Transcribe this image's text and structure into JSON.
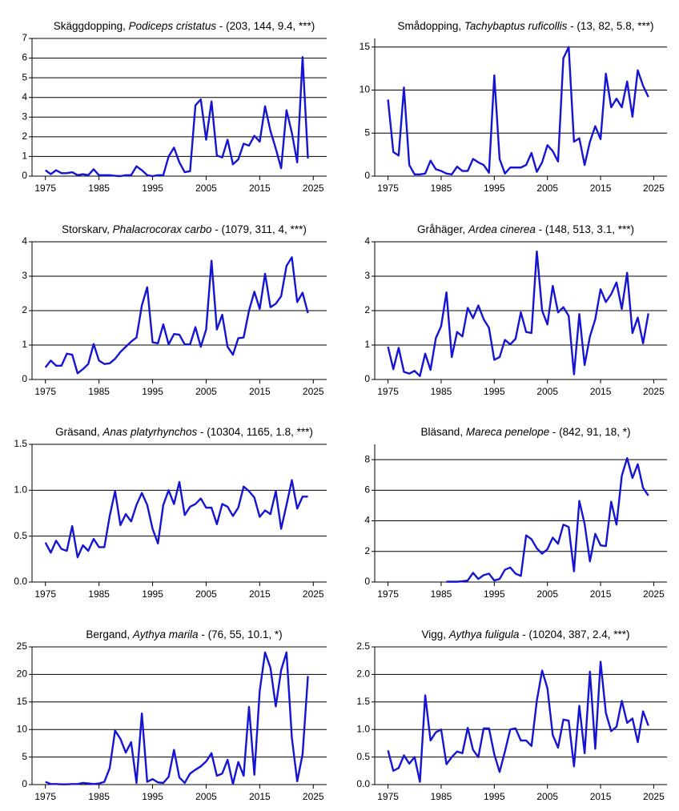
{
  "chart_data": [
    {
      "type": "line",
      "title": [
        "Skäggdopping, ",
        "Podiceps cristatus",
        " - (203, 144, 9.4, ***)"
      ],
      "color": "#1414d2",
      "x": [
        1975,
        1976,
        1977,
        1978,
        1979,
        1980,
        1981,
        1982,
        1983,
        1984,
        1985,
        1986,
        1987,
        1988,
        1989,
        1990,
        1991,
        1992,
        1993,
        1994,
        1995,
        1996,
        1997,
        1998,
        1999,
        2000,
        2001,
        2002,
        2003,
        2004,
        2005,
        2006,
        2007,
        2008,
        2009,
        2010,
        2011,
        2012,
        2013,
        2014,
        2015,
        2016,
        2017,
        2018,
        2019,
        2020,
        2021,
        2022,
        2023,
        2024
      ],
      "values": [
        0.3,
        0.1,
        0.3,
        0.15,
        0.15,
        0.2,
        0.05,
        0.1,
        0.05,
        0.35,
        0.05,
        0.05,
        0.05,
        0.02,
        0,
        0.05,
        0.05,
        0.5,
        0.3,
        0.05,
        0,
        0.05,
        0.05,
        1.0,
        1.45,
        0.7,
        0.2,
        0.25,
        3.6,
        3.9,
        1.85,
        3.8,
        1.05,
        0.95,
        1.85,
        0.6,
        0.85,
        1.65,
        1.55,
        2.05,
        1.75,
        3.55,
        2.3,
        1.4,
        0.4,
        3.35,
        2.2,
        0.7,
        6.05,
        0.9
      ],
      "xlim": [
        1972.5,
        2027.5
      ],
      "xticks": [
        1975,
        1985,
        1995,
        2005,
        2015,
        2025
      ],
      "ylim": [
        0,
        7
      ],
      "yticks": [
        0,
        1,
        2,
        3,
        4,
        5,
        6,
        7
      ],
      "grid": true
    },
    {
      "type": "line",
      "title": [
        "Smådopping, ",
        "Tachybaptus ruficollis",
        " - (13, 82, 5.8, ***)"
      ],
      "color": "#1414d2",
      "x": [
        1975,
        1976,
        1977,
        1978,
        1979,
        1980,
        1981,
        1982,
        1983,
        1984,
        1985,
        1986,
        1987,
        1988,
        1989,
        1990,
        1991,
        1992,
        1993,
        1994,
        1995,
        1996,
        1997,
        1998,
        1999,
        2000,
        2001,
        2002,
        2003,
        2004,
        2005,
        2006,
        2007,
        2008,
        2009,
        2010,
        2011,
        2012,
        2013,
        2014,
        2015,
        2016,
        2017,
        2018,
        2019,
        2020,
        2021,
        2022,
        2023,
        2024
      ],
      "values": [
        8.9,
        2.8,
        2.4,
        10.3,
        1.3,
        0.2,
        0.2,
        0.3,
        1.8,
        0.8,
        0.6,
        0.3,
        0.2,
        1.1,
        0.6,
        0.6,
        2.0,
        1.6,
        1.3,
        0.4,
        11.7,
        2.0,
        0.3,
        1.0,
        1.0,
        1.0,
        1.3,
        2.7,
        0.5,
        1.6,
        3.6,
        2.9,
        1.7,
        13.7,
        15.0,
        4.0,
        4.4,
        1.3,
        4.0,
        5.8,
        4.3,
        11.9,
        8.0,
        9.0,
        8.0,
        11.0,
        6.9,
        12.3,
        10.5,
        9.2
      ],
      "xlim": [
        1972.5,
        2027.5
      ],
      "xticks": [
        1975,
        1985,
        1995,
        2005,
        2015,
        2025
      ],
      "ylim": [
        0,
        16
      ],
      "yticks": [
        0,
        5,
        10,
        15
      ],
      "grid": true
    },
    {
      "type": "line",
      "title": [
        "Storskarv, ",
        "Phalacrocorax carbo",
        " - (1079, 311, 4, ***)"
      ],
      "color": "#1414d2",
      "x": [
        1975,
        1976,
        1977,
        1978,
        1979,
        1980,
        1981,
        1982,
        1983,
        1984,
        1985,
        1986,
        1987,
        1988,
        1989,
        1990,
        1991,
        1992,
        1993,
        1994,
        1995,
        1996,
        1997,
        1998,
        1999,
        2000,
        2001,
        2002,
        2003,
        2004,
        2005,
        2006,
        2007,
        2008,
        2009,
        2010,
        2011,
        2012,
        2013,
        2014,
        2015,
        2016,
        2017,
        2018,
        2019,
        2020,
        2021,
        2022,
        2023,
        2024
      ],
      "values": [
        0.35,
        0.55,
        0.4,
        0.4,
        0.75,
        0.72,
        0.18,
        0.3,
        0.45,
        1.03,
        0.55,
        0.45,
        0.47,
        0.6,
        0.8,
        0.95,
        1.1,
        1.22,
        2.15,
        2.68,
        1.08,
        1.05,
        1.6,
        1.02,
        1.32,
        1.3,
        1.02,
        1.02,
        1.52,
        0.95,
        1.45,
        3.45,
        1.45,
        1.88,
        0.95,
        0.72,
        1.2,
        1.22,
        2.0,
        2.55,
        2.05,
        3.07,
        2.1,
        2.2,
        2.42,
        3.3,
        3.55,
        2.25,
        2.52,
        1.93
      ],
      "xlim": [
        1972.5,
        2027.5
      ],
      "xticks": [
        1975,
        1985,
        1995,
        2005,
        2015,
        2025
      ],
      "ylim": [
        0,
        4
      ],
      "yticks": [
        0,
        1,
        2,
        3,
        4
      ],
      "grid": true
    },
    {
      "type": "line",
      "title": [
        "Gråhäger, ",
        "Ardea cinerea",
        " - (148, 513, 3.1, ***)"
      ],
      "color": "#1414d2",
      "x": [
        1975,
        1976,
        1977,
        1978,
        1979,
        1980,
        1981,
        1982,
        1983,
        1984,
        1985,
        1986,
        1987,
        1988,
        1989,
        1990,
        1991,
        1992,
        1993,
        1994,
        1995,
        1996,
        1997,
        1998,
        1999,
        2000,
        2001,
        2002,
        2003,
        2004,
        2005,
        2006,
        2007,
        2008,
        2009,
        2010,
        2011,
        2012,
        2013,
        2014,
        2015,
        2016,
        2017,
        2018,
        2019,
        2020,
        2021,
        2022,
        2023,
        2024
      ],
      "values": [
        0.95,
        0.3,
        0.92,
        0.22,
        0.17,
        0.25,
        0.1,
        0.75,
        0.28,
        1.2,
        1.55,
        2.53,
        0.65,
        1.38,
        1.25,
        2.08,
        1.78,
        2.15,
        1.75,
        1.5,
        0.57,
        0.65,
        1.15,
        1.02,
        1.18,
        1.95,
        1.38,
        1.35,
        3.72,
        2.0,
        1.6,
        2.72,
        1.95,
        2.1,
        1.85,
        0.15,
        1.9,
        0.42,
        1.25,
        1.75,
        2.62,
        2.25,
        2.48,
        2.82,
        2.05,
        3.1,
        1.35,
        1.8,
        1.05,
        1.92
      ],
      "xlim": [
        1972.5,
        2027.5
      ],
      "xticks": [
        1975,
        1985,
        1995,
        2005,
        2015,
        2025
      ],
      "ylim": [
        0,
        4
      ],
      "yticks": [
        0,
        1,
        2,
        3,
        4
      ],
      "grid": true
    },
    {
      "type": "line",
      "title": [
        "Gräsand, ",
        "Anas platyrhynchos",
        " - (10304, 1165, 1.8, ***)"
      ],
      "color": "#1414d2",
      "x": [
        1975,
        1976,
        1977,
        1978,
        1979,
        1980,
        1981,
        1982,
        1983,
        1984,
        1985,
        1986,
        1987,
        1988,
        1989,
        1990,
        1991,
        1992,
        1993,
        1994,
        1995,
        1996,
        1997,
        1998,
        1999,
        2000,
        2001,
        2002,
        2003,
        2004,
        2005,
        2006,
        2007,
        2008,
        2009,
        2010,
        2011,
        2012,
        2013,
        2014,
        2015,
        2016,
        2017,
        2018,
        2019,
        2020,
        2021,
        2022,
        2023,
        2024
      ],
      "values": [
        0.43,
        0.32,
        0.45,
        0.36,
        0.34,
        0.61,
        0.27,
        0.4,
        0.34,
        0.47,
        0.38,
        0.38,
        0.72,
        0.99,
        0.62,
        0.74,
        0.66,
        0.84,
        0.97,
        0.84,
        0.58,
        0.42,
        0.84,
        1.0,
        0.85,
        1.09,
        0.73,
        0.82,
        0.85,
        0.91,
        0.81,
        0.81,
        0.63,
        0.85,
        0.82,
        0.72,
        0.81,
        1.04,
        0.99,
        0.92,
        0.71,
        0.78,
        0.74,
        0.99,
        0.58,
        0.84,
        1.11,
        0.8,
        0.93,
        0.93
      ],
      "xlim": [
        1972.5,
        2027.5
      ],
      "xticks": [
        1975,
        1985,
        1995,
        2005,
        2015,
        2025
      ],
      "ylim": [
        0,
        1.5
      ],
      "yticks": [
        {
          "value": 0,
          "label": "0.0"
        },
        0.5,
        {
          "value": 1,
          "label": "1.0"
        },
        1.5
      ],
      "grid": true
    },
    {
      "type": "line",
      "title": [
        "Bläsand, ",
        "Mareca penelope",
        " - (842, 91, 18, *)"
      ],
      "color": "#1414d2",
      "x": [
        1975,
        1976,
        1977,
        1978,
        1979,
        1980,
        1981,
        1982,
        1983,
        1984,
        1985,
        1986,
        1987,
        1988,
        1989,
        1990,
        1991,
        1992,
        1993,
        1994,
        1995,
        1996,
        1997,
        1998,
        1999,
        2000,
        2001,
        2002,
        2003,
        2004,
        2005,
        2006,
        2007,
        2008,
        2009,
        2010,
        2011,
        2012,
        2013,
        2014,
        2015,
        2016,
        2017,
        2018,
        2019,
        2020,
        2021,
        2022,
        2023,
        2024
      ],
      "values": [
        null,
        null,
        null,
        null,
        null,
        null,
        null,
        null,
        null,
        null,
        null,
        0.02,
        0.02,
        0.02,
        0.05,
        0.1,
        0.6,
        0.2,
        0.45,
        0.55,
        0.1,
        0.2,
        0.8,
        0.95,
        0.55,
        0.4,
        3.05,
        2.8,
        2.2,
        1.85,
        2.15,
        2.9,
        2.5,
        3.75,
        3.6,
        0.7,
        5.3,
        3.8,
        1.35,
        3.15,
        2.4,
        2.35,
        5.25,
        3.75,
        6.95,
        8.1,
        6.8,
        7.7,
        6.15,
        5.65
      ],
      "xlim": [
        1972.5,
        2027.5
      ],
      "xticks": [
        1975,
        1985,
        1995,
        2005,
        2015,
        2025
      ],
      "ylim": [
        0,
        9
      ],
      "yticks": [
        0,
        2,
        4,
        6,
        8
      ],
      "grid": true
    },
    {
      "type": "line",
      "title": [
        "Bergand, ",
        "Aythya marila",
        " - (76, 55, 10.1, *)"
      ],
      "color": "#1414d2",
      "x": [
        1975,
        1976,
        1977,
        1978,
        1979,
        1980,
        1981,
        1982,
        1983,
        1984,
        1985,
        1986,
        1987,
        1988,
        1989,
        1990,
        1991,
        1992,
        1993,
        1994,
        1995,
        1996,
        1997,
        1998,
        1999,
        2000,
        2001,
        2002,
        2003,
        2004,
        2005,
        2006,
        2007,
        2008,
        2009,
        2010,
        2011,
        2012,
        2013,
        2014,
        2015,
        2016,
        2017,
        2018,
        2019,
        2020,
        2021,
        2022,
        2023,
        2024
      ],
      "values": [
        0.5,
        0.1,
        0.1,
        0.05,
        0.05,
        0.1,
        0.1,
        0.3,
        0.2,
        0.1,
        0.2,
        0.5,
        3.0,
        9.8,
        8.3,
        5.8,
        7.7,
        0.3,
        12.9,
        0.5,
        1.0,
        0.4,
        0.3,
        1.4,
        6.3,
        1.3,
        0.3,
        2.0,
        2.7,
        3.3,
        4.2,
        5.7,
        1.6,
        2.0,
        4.5,
        0.1,
        4.1,
        1.6,
        14.1,
        1.8,
        17.0,
        24.0,
        21.2,
        14.2,
        20.8,
        24.0,
        8.5,
        0.6,
        5.5,
        19.7
      ],
      "xlim": [
        1972.5,
        2027.5
      ],
      "xticks": [
        1975,
        1985,
        1995,
        2005,
        2015,
        2025
      ],
      "ylim": [
        0,
        25
      ],
      "yticks": [
        0,
        5,
        10,
        15,
        20,
        25
      ],
      "grid": true
    },
    {
      "type": "line",
      "title": [
        "Vigg, ",
        "Aythya fuligula",
        " - (10204, 387, 2.4, ***)"
      ],
      "color": "#1414d2",
      "x": [
        1975,
        1976,
        1977,
        1978,
        1979,
        1980,
        1981,
        1982,
        1983,
        1984,
        1985,
        1986,
        1987,
        1988,
        1989,
        1990,
        1991,
        1992,
        1993,
        1994,
        1995,
        1996,
        1997,
        1998,
        1999,
        2000,
        2001,
        2002,
        2003,
        2004,
        2005,
        2006,
        2007,
        2008,
        2009,
        2010,
        2011,
        2012,
        2013,
        2014,
        2015,
        2016,
        2017,
        2018,
        2019,
        2020,
        2021,
        2022,
        2023,
        2024
      ],
      "values": [
        0.62,
        0.25,
        0.3,
        0.53,
        0.38,
        0.5,
        0.05,
        1.62,
        0.8,
        0.95,
        1.0,
        0.37,
        0.5,
        0.6,
        0.57,
        1.03,
        0.63,
        0.5,
        1.02,
        1.02,
        0.55,
        0.23,
        0.6,
        1.0,
        1.02,
        0.8,
        0.8,
        0.7,
        1.52,
        2.07,
        1.75,
        0.9,
        0.67,
        1.18,
        1.16,
        0.33,
        1.43,
        0.57,
        2.05,
        0.65,
        2.23,
        1.3,
        0.97,
        1.05,
        1.52,
        1.12,
        1.2,
        0.77,
        1.33,
        1.07
      ],
      "xlim": [
        1972.5,
        2027.5
      ],
      "xticks": [
        1975,
        1985,
        1995,
        2005,
        2015,
        2025
      ],
      "ylim": [
        0,
        2.5
      ],
      "yticks": [
        {
          "value": 0,
          "label": "0.0"
        },
        0.5,
        {
          "value": 1,
          "label": "1.0"
        },
        1.5,
        {
          "value": 2,
          "label": "2.0"
        },
        2.5
      ],
      "grid": true
    }
  ]
}
